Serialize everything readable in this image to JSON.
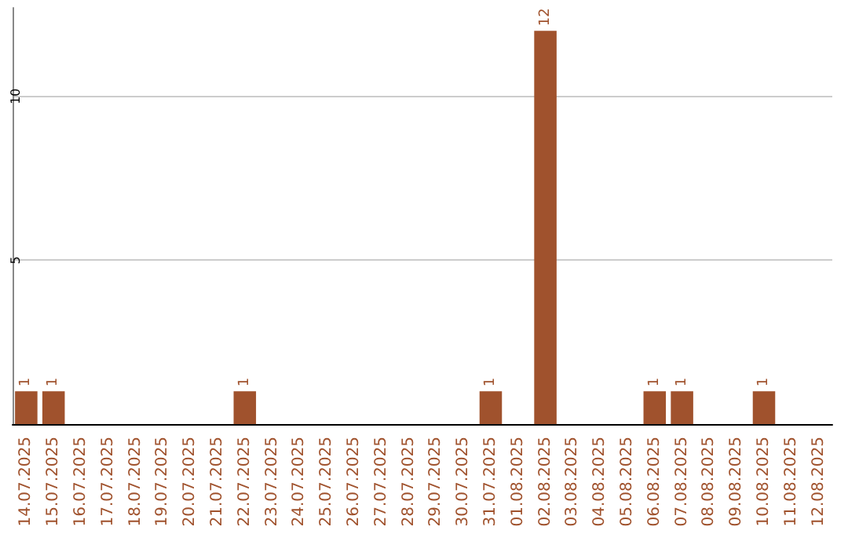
{
  "chart_data": {
    "type": "bar",
    "categories": [
      "14.07.2025",
      "15.07.2025",
      "16.07.2025",
      "17.07.2025",
      "18.07.2025",
      "19.07.2025",
      "20.07.2025",
      "21.07.2025",
      "22.07.2025",
      "23.07.2025",
      "24.07.2025",
      "25.07.2025",
      "26.07.2025",
      "27.07.2025",
      "28.07.2025",
      "29.07.2025",
      "30.07.2025",
      "31.07.2025",
      "01.08.2025",
      "02.08.2025",
      "03.08.2025",
      "04.08.2025",
      "05.08.2025",
      "06.08.2025",
      "07.08.2025",
      "08.08.2025",
      "09.08.2025",
      "10.08.2025",
      "11.08.2025",
      "12.08.2025"
    ],
    "values": [
      1,
      1,
      0,
      0,
      0,
      0,
      0,
      0,
      1,
      0,
      0,
      0,
      0,
      0,
      0,
      0,
      0,
      1,
      0,
      12,
      0,
      0,
      0,
      1,
      1,
      0,
      0,
      1,
      0,
      0
    ],
    "value_labels": [
      "1",
      "1",
      null,
      null,
      null,
      null,
      null,
      null,
      "1",
      null,
      null,
      null,
      null,
      null,
      null,
      null,
      null,
      "1",
      null,
      "12",
      null,
      null,
      null,
      "1",
      "1",
      null,
      null,
      "1",
      null,
      null
    ],
    "color": "#a0522d",
    "ylim": [
      0,
      12.7
    ],
    "yticks": [
      5,
      10
    ],
    "grid": "y"
  }
}
